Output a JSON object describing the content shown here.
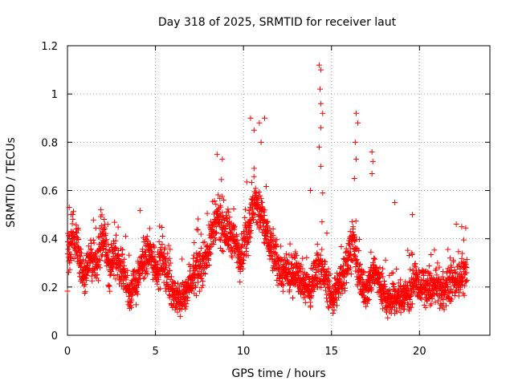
{
  "chart_data": {
    "type": "scatter",
    "marker": "+",
    "title": "Day 318 of 2025, SRMTID for receiver laut",
    "xlabel": "GPS time / hours",
    "ylabel": "SRMTID / TECUs",
    "xlim": [
      0,
      24
    ],
    "ylim": [
      0,
      1.2
    ],
    "xticks": [
      0,
      5,
      10,
      15,
      20
    ],
    "xtick_labels": [
      "0",
      "5",
      "10",
      "15",
      "20"
    ],
    "yticks": [
      0,
      0.2,
      0.4,
      0.6,
      0.8,
      1.0,
      1.2
    ],
    "ytick_labels": [
      "0",
      "0.2",
      "0.4",
      "0.6",
      "0.8",
      "1",
      "1.2"
    ],
    "grid": true,
    "series_color": "#ff0000",
    "data_range_x": [
      0,
      22.7
    ],
    "trend": [
      [
        0.0,
        0.33
      ],
      [
        0.3,
        0.42
      ],
      [
        0.6,
        0.35
      ],
      [
        1.0,
        0.22
      ],
      [
        1.3,
        0.33
      ],
      [
        1.7,
        0.3
      ],
      [
        2.0,
        0.42
      ],
      [
        2.4,
        0.28
      ],
      [
        2.8,
        0.32
      ],
      [
        3.2,
        0.26
      ],
      [
        3.5,
        0.17
      ],
      [
        3.9,
        0.22
      ],
      [
        4.3,
        0.31
      ],
      [
        4.7,
        0.34
      ],
      [
        5.1,
        0.28
      ],
      [
        5.4,
        0.31
      ],
      [
        5.8,
        0.22
      ],
      [
        6.2,
        0.14
      ],
      [
        6.6,
        0.16
      ],
      [
        7.0,
        0.23
      ],
      [
        7.4,
        0.27
      ],
      [
        7.8,
        0.3
      ],
      [
        8.2,
        0.42
      ],
      [
        8.6,
        0.48
      ],
      [
        9.0,
        0.44
      ],
      [
        9.4,
        0.4
      ],
      [
        9.8,
        0.33
      ],
      [
        10.2,
        0.42
      ],
      [
        10.6,
        0.55
      ],
      [
        11.0,
        0.5
      ],
      [
        11.4,
        0.4
      ],
      [
        11.8,
        0.32
      ],
      [
        12.2,
        0.26
      ],
      [
        12.6,
        0.24
      ],
      [
        13.0,
        0.28
      ],
      [
        13.4,
        0.22
      ],
      [
        13.8,
        0.18
      ],
      [
        14.2,
        0.3
      ],
      [
        14.6,
        0.25
      ],
      [
        15.0,
        0.15
      ],
      [
        15.4,
        0.2
      ],
      [
        15.8,
        0.28
      ],
      [
        16.2,
        0.4
      ],
      [
        16.6,
        0.22
      ],
      [
        17.0,
        0.18
      ],
      [
        17.4,
        0.28
      ],
      [
        17.8,
        0.2
      ],
      [
        18.2,
        0.14
      ],
      [
        18.6,
        0.15
      ],
      [
        19.0,
        0.16
      ],
      [
        19.4,
        0.18
      ],
      [
        19.8,
        0.22
      ],
      [
        20.2,
        0.2
      ],
      [
        20.6,
        0.19
      ],
      [
        21.0,
        0.2
      ],
      [
        21.4,
        0.18
      ],
      [
        21.8,
        0.22
      ],
      [
        22.2,
        0.24
      ],
      [
        22.7,
        0.25
      ]
    ],
    "highlights": [
      [
        0.1,
        0.53
      ],
      [
        0.2,
        0.5
      ],
      [
        1.9,
        0.52
      ],
      [
        8.5,
        0.75
      ],
      [
        8.8,
        0.73
      ],
      [
        10.4,
        0.9
      ],
      [
        10.6,
        0.85
      ],
      [
        10.9,
        0.88
      ],
      [
        11.2,
        0.9
      ],
      [
        11.0,
        0.8
      ],
      [
        13.8,
        0.6
      ],
      [
        14.3,
        1.12
      ],
      [
        14.4,
        1.1
      ],
      [
        14.35,
        1.02
      ],
      [
        14.4,
        0.96
      ],
      [
        14.5,
        0.92
      ],
      [
        14.4,
        0.86
      ],
      [
        14.3,
        0.78
      ],
      [
        14.4,
        0.7
      ],
      [
        14.5,
        0.59
      ],
      [
        16.4,
        0.92
      ],
      [
        16.5,
        0.88
      ],
      [
        16.35,
        0.8
      ],
      [
        16.4,
        0.73
      ],
      [
        16.3,
        0.65
      ],
      [
        17.3,
        0.76
      ],
      [
        17.35,
        0.72
      ],
      [
        17.3,
        0.67
      ],
      [
        18.6,
        0.55
      ],
      [
        19.6,
        0.5
      ],
      [
        22.4,
        0.45
      ]
    ]
  }
}
